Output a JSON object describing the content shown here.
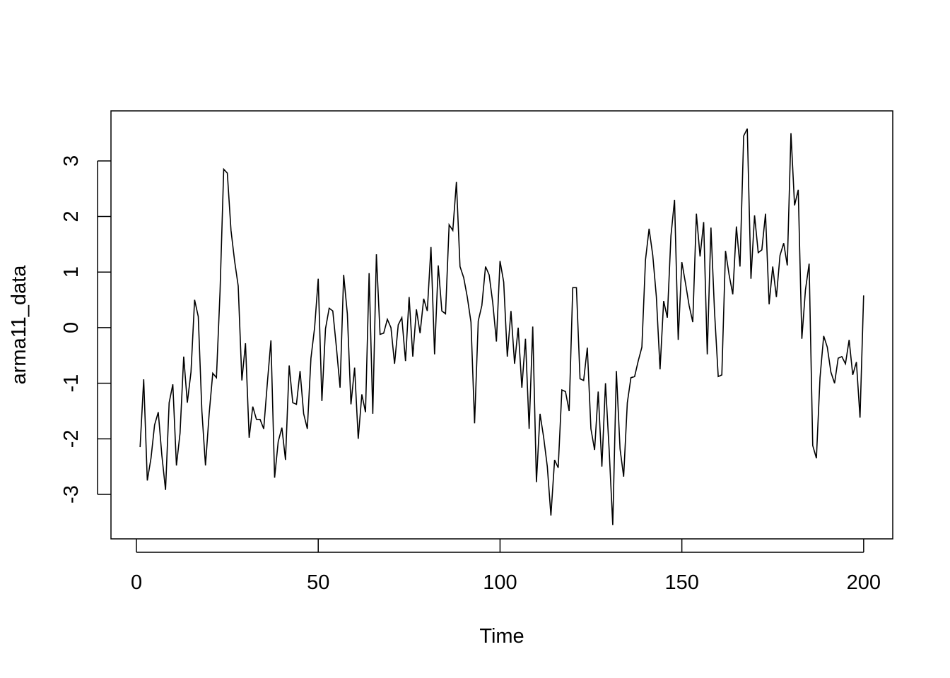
{
  "chart_data": {
    "type": "line",
    "title": "",
    "xlabel": "Time",
    "ylabel": "arma11_data",
    "xlim": [
      -7,
      208
    ],
    "ylim": [
      -3.8,
      3.9
    ],
    "xticks": [
      0,
      50,
      100,
      150,
      200
    ],
    "yticks": [
      -3,
      -2,
      -1,
      0,
      1,
      2,
      3
    ],
    "grid": false,
    "legend": "none",
    "line_color": "#000000",
    "series": [
      {
        "x": [
          1,
          2,
          3,
          4,
          5,
          6,
          7,
          8,
          9,
          10,
          11,
          12,
          13,
          14,
          15,
          16,
          17,
          18,
          19,
          20,
          21,
          22,
          23,
          24,
          25,
          26,
          27,
          28,
          29,
          30,
          31,
          32,
          33,
          34,
          35,
          36,
          37,
          38,
          39,
          40,
          41,
          42,
          43,
          44,
          45,
          46,
          47,
          48,
          49,
          50,
          51,
          52,
          53,
          54,
          55,
          56,
          57,
          58,
          59,
          60,
          61,
          62,
          63,
          64,
          65,
          66,
          67,
          68,
          69,
          70,
          71,
          72,
          73,
          74,
          75,
          76,
          77,
          78,
          79,
          80,
          81,
          82,
          83,
          84,
          85,
          86,
          87,
          88,
          89,
          90,
          91,
          92,
          93,
          94,
          95,
          96,
          97,
          98,
          99,
          100,
          101,
          102,
          103,
          104,
          105,
          106,
          107,
          108,
          109,
          110,
          111,
          112,
          113,
          114,
          115,
          116,
          117,
          118,
          119,
          120,
          121,
          122,
          123,
          124,
          125,
          126,
          127,
          128,
          129,
          130,
          131,
          132,
          133,
          134,
          135,
          136,
          137,
          138,
          139,
          140,
          141,
          142,
          143,
          144,
          145,
          146,
          147,
          148,
          149,
          150,
          151,
          152,
          153,
          154,
          155,
          156,
          157,
          158,
          159,
          160,
          161,
          162,
          163,
          164,
          165,
          166,
          167,
          168,
          169,
          170,
          171,
          172,
          173,
          174,
          175,
          176,
          177,
          178,
          179,
          180,
          181,
          182,
          183,
          184,
          185,
          186,
          187,
          188,
          189,
          190,
          191,
          192,
          193,
          194,
          195,
          196,
          197,
          198,
          199,
          200
        ],
        "values": [
          -2.15,
          -0.93,
          -2.75,
          -2.35,
          -1.75,
          -1.52,
          -2.3,
          -2.92,
          -1.35,
          -1.02,
          -2.48,
          -1.9,
          -0.52,
          -1.35,
          -0.8,
          0.5,
          0.2,
          -1.5,
          -2.48,
          -1.55,
          -0.82,
          -0.9,
          0.65,
          2.85,
          2.78,
          1.75,
          1.2,
          0.75,
          -0.95,
          -0.28,
          -1.98,
          -1.42,
          -1.65,
          -1.65,
          -1.82,
          -1.0,
          -0.23,
          -2.7,
          -2.05,
          -1.8,
          -2.38,
          -0.68,
          -1.35,
          -1.38,
          -0.78,
          -1.55,
          -1.82,
          -0.55,
          0.0,
          0.88,
          -1.32,
          -0.02,
          0.35,
          0.3,
          -0.35,
          -1.08,
          0.95,
          0.25,
          -1.38,
          -0.72,
          -2.0,
          -1.2,
          -1.52,
          0.98,
          -1.55,
          1.32,
          -0.12,
          -0.1,
          0.15,
          0.0,
          -0.65,
          0.05,
          0.18,
          -0.6,
          0.55,
          -0.52,
          0.33,
          -0.1,
          0.52,
          0.3,
          1.45,
          -0.48,
          1.12,
          0.3,
          0.25,
          1.85,
          1.75,
          2.62,
          1.1,
          0.9,
          0.55,
          0.1,
          -1.72,
          0.12,
          0.4,
          1.1,
          0.95,
          0.45,
          -0.25,
          1.2,
          0.82,
          -0.52,
          0.3,
          -0.65,
          0.0,
          -1.08,
          -0.2,
          -1.82,
          0.02,
          -2.78,
          -1.55,
          -1.98,
          -2.5,
          -3.38,
          -2.38,
          -2.52,
          -1.12,
          -1.15,
          -1.5,
          0.72,
          0.72,
          -0.92,
          -0.95,
          -0.36,
          -1.82,
          -2.2,
          -1.15,
          -2.5,
          -1.0,
          -2.2,
          -3.55,
          -0.78,
          -2.18,
          -2.68,
          -1.35,
          -0.9,
          -0.88,
          -0.6,
          -0.35,
          1.22,
          1.78,
          1.3,
          0.55,
          -0.75,
          0.48,
          0.18,
          1.65,
          2.3,
          -0.22,
          1.18,
          0.8,
          0.4,
          0.1,
          2.05,
          1.28,
          1.9,
          -0.48,
          1.8,
          0.28,
          -0.88,
          -0.85,
          1.38,
          0.95,
          0.6,
          1.82,
          1.1,
          3.45,
          3.58,
          0.88,
          2.02,
          1.35,
          1.4,
          2.05,
          0.42,
          1.1,
          0.55,
          1.3,
          1.52,
          1.12,
          3.5,
          2.2,
          2.48,
          -0.2,
          0.68,
          1.15,
          -2.12,
          -2.35,
          -0.9,
          -0.15,
          -0.35,
          -0.8,
          -1.0,
          -0.55,
          -0.52,
          -0.65,
          -0.22,
          -0.85,
          -0.62,
          -1.62,
          0.58
        ]
      }
    ]
  }
}
